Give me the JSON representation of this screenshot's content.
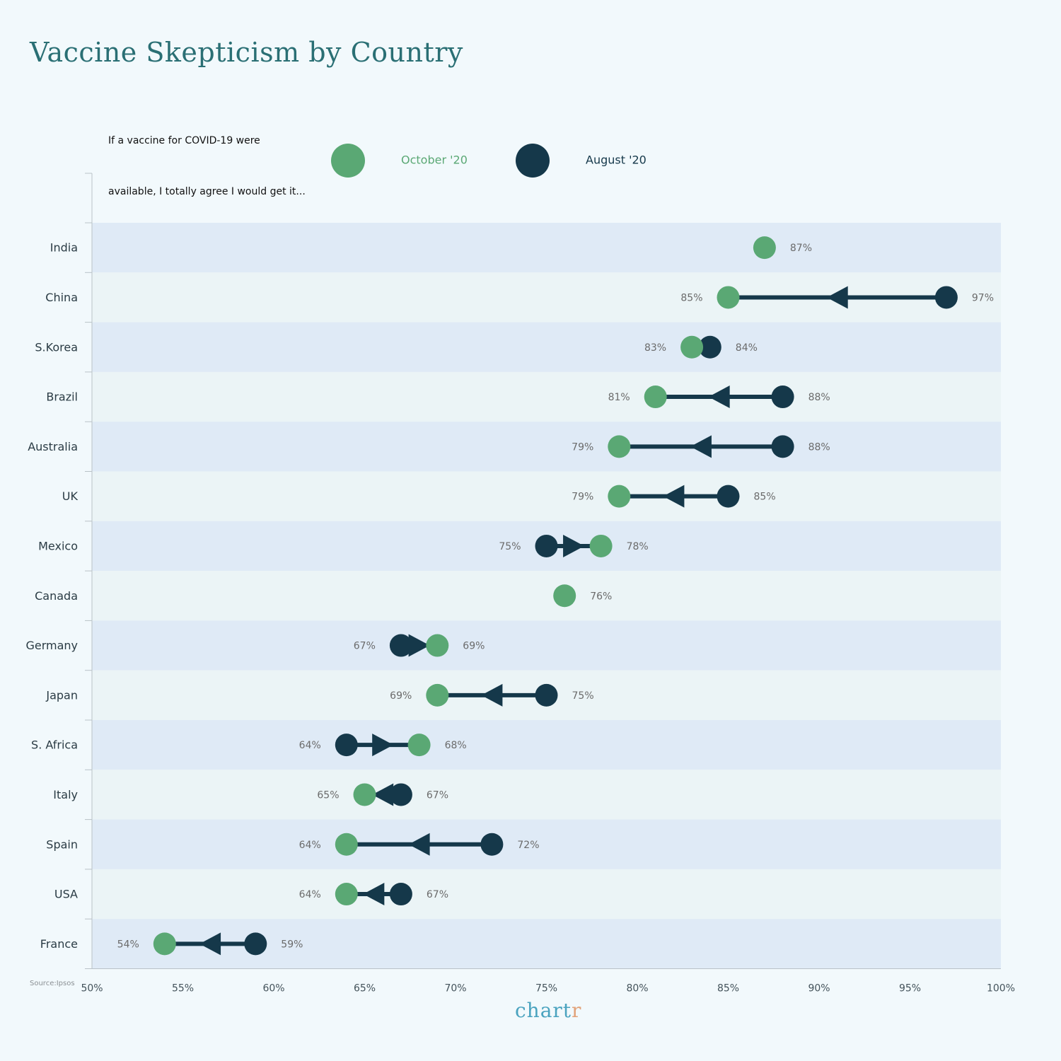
{
  "chart_data": {
    "type": "dumbbell",
    "title": "Vaccine Skepticism by Country",
    "question": [
      "If a vaccine for COVID-19 were",
      "available, I totally agree I would get it..."
    ],
    "xlim": [
      50,
      100
    ],
    "x_ticks": [
      50,
      55,
      60,
      65,
      70,
      75,
      80,
      85,
      90,
      95,
      100
    ],
    "x_tick_format": "{v}%",
    "legend": [
      {
        "key": "october",
        "label": "October '20",
        "color": "#5aa874"
      },
      {
        "key": "august",
        "label": "August '20",
        "color": "#15384a"
      }
    ],
    "series_colors": {
      "october": "#5aa874",
      "august": "#15384a"
    },
    "row_colors": [
      "#dfeaf6",
      "#ebf4f6"
    ],
    "rows": [
      {
        "country": "India",
        "october": 87,
        "august": null,
        "october_label": "87%",
        "august_label": ""
      },
      {
        "country": "China",
        "october": 85,
        "august": 97,
        "october_label": "85%",
        "august_label": "97%"
      },
      {
        "country": "S.Korea",
        "october": 83,
        "august": 84,
        "october_label": "83%",
        "august_label": "84%"
      },
      {
        "country": "Brazil",
        "october": 81,
        "august": 88,
        "october_label": "81%",
        "august_label": "88%"
      },
      {
        "country": "Australia",
        "october": 79,
        "august": 88,
        "october_label": "79%",
        "august_label": "88%"
      },
      {
        "country": "UK",
        "october": 79,
        "august": 85,
        "october_label": "79%",
        "august_label": "85%"
      },
      {
        "country": "Mexico",
        "october": 78,
        "august": 75,
        "october_label": "78%",
        "august_label": "75%"
      },
      {
        "country": "Canada",
        "october": 76,
        "august": null,
        "october_label": "76%",
        "august_label": ""
      },
      {
        "country": "Germany",
        "october": 69,
        "august": 67,
        "october_label": "69%",
        "august_label": "67%"
      },
      {
        "country": "Japan",
        "october": 69,
        "august": 75,
        "october_label": "69%",
        "august_label": "75%"
      },
      {
        "country": "S. Africa",
        "october": 68,
        "august": 64,
        "october_label": "68%",
        "august_label": "64%"
      },
      {
        "country": "Italy",
        "october": 65,
        "august": 67,
        "october_label": "65%",
        "august_label": "67%"
      },
      {
        "country": "Spain",
        "october": 64,
        "august": 72,
        "october_label": "64%",
        "august_label": "72%"
      },
      {
        "country": "USA",
        "october": 64,
        "august": 67,
        "october_label": "64%",
        "august_label": "67%"
      },
      {
        "country": "France",
        "october": 54,
        "august": 59,
        "october_label": "54%",
        "august_label": "59%"
      }
    ]
  },
  "footer": {
    "source": "Source:Ipsos",
    "brand_main": "chart",
    "brand_accent": "r"
  }
}
